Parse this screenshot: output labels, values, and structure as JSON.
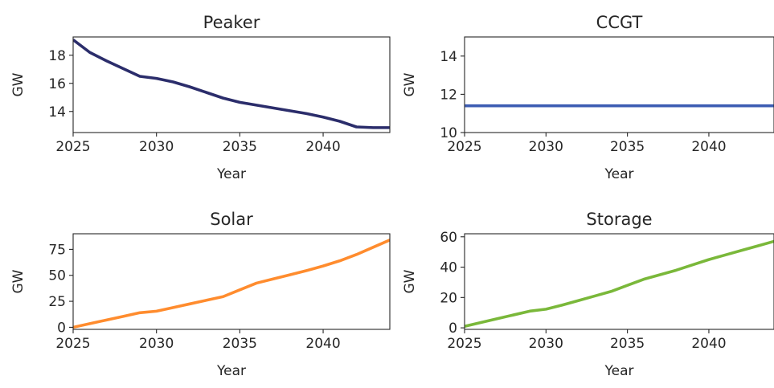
{
  "chart_data": [
    {
      "type": "line",
      "title": "Peaker",
      "xlabel": "Year",
      "ylabel": "GW",
      "color": "#2b2d6b",
      "xlim": [
        2025,
        2044
      ],
      "ylim": [
        12.5,
        19.3
      ],
      "xticks": [
        2025,
        2030,
        2035,
        2040
      ],
      "yticks": [
        14,
        16,
        18
      ],
      "grid": false,
      "x": [
        2025,
        2026,
        2027,
        2028,
        2029,
        2030,
        2031,
        2032,
        2033,
        2034,
        2035,
        2036,
        2037,
        2038,
        2039,
        2040,
        2041,
        2042,
        2043,
        2044
      ],
      "y": [
        19.1,
        18.2,
        17.6,
        17.05,
        16.5,
        16.35,
        16.1,
        15.75,
        15.35,
        14.95,
        14.65,
        14.45,
        14.25,
        14.05,
        13.85,
        13.6,
        13.3,
        12.9,
        12.85,
        12.85
      ]
    },
    {
      "type": "line",
      "title": "CCGT",
      "xlabel": "Year",
      "ylabel": "GW",
      "color": "#3d5db3",
      "xlim": [
        2025,
        2044
      ],
      "ylim": [
        10,
        15
      ],
      "xticks": [
        2025,
        2030,
        2035,
        2040
      ],
      "yticks": [
        10,
        12,
        14
      ],
      "grid": false,
      "x": [
        2025,
        2044
      ],
      "y": [
        11.4,
        11.4
      ]
    },
    {
      "type": "line",
      "title": "Solar",
      "xlabel": "Year",
      "ylabel": "GW",
      "color": "#ff8c2e",
      "xlim": [
        2025,
        2044
      ],
      "ylim": [
        -2,
        90
      ],
      "xticks": [
        2025,
        2030,
        2035,
        2040
      ],
      "yticks": [
        0,
        25,
        50,
        75
      ],
      "grid": false,
      "x": [
        2025,
        2026,
        2027,
        2028,
        2029,
        2030,
        2031,
        2032,
        2033,
        2034,
        2035,
        2036,
        2037,
        2038,
        2039,
        2040,
        2041,
        2042,
        2043,
        2044
      ],
      "y": [
        0,
        3.5,
        7,
        10.5,
        14,
        15.5,
        19,
        22.5,
        26,
        29.5,
        36,
        42.5,
        46.5,
        50.5,
        54.5,
        59,
        64,
        70,
        77,
        84
      ]
    },
    {
      "type": "line",
      "title": "Storage",
      "xlabel": "Year",
      "ylabel": "GW",
      "color": "#7ab83a",
      "xlim": [
        2025,
        2044
      ],
      "ylim": [
        -1,
        62
      ],
      "xticks": [
        2025,
        2030,
        2035,
        2040
      ],
      "yticks": [
        0,
        20,
        40,
        60
      ],
      "grid": false,
      "x": [
        2025,
        2026,
        2027,
        2028,
        2029,
        2030,
        2031,
        2032,
        2033,
        2034,
        2035,
        2036,
        2037,
        2038,
        2039,
        2040,
        2041,
        2042,
        2043,
        2044
      ],
      "y": [
        1,
        3.5,
        6,
        8.5,
        11,
        12.3,
        15,
        18,
        21,
        24,
        28,
        32,
        35,
        38,
        41.5,
        45,
        48,
        51,
        54,
        57
      ]
    }
  ]
}
